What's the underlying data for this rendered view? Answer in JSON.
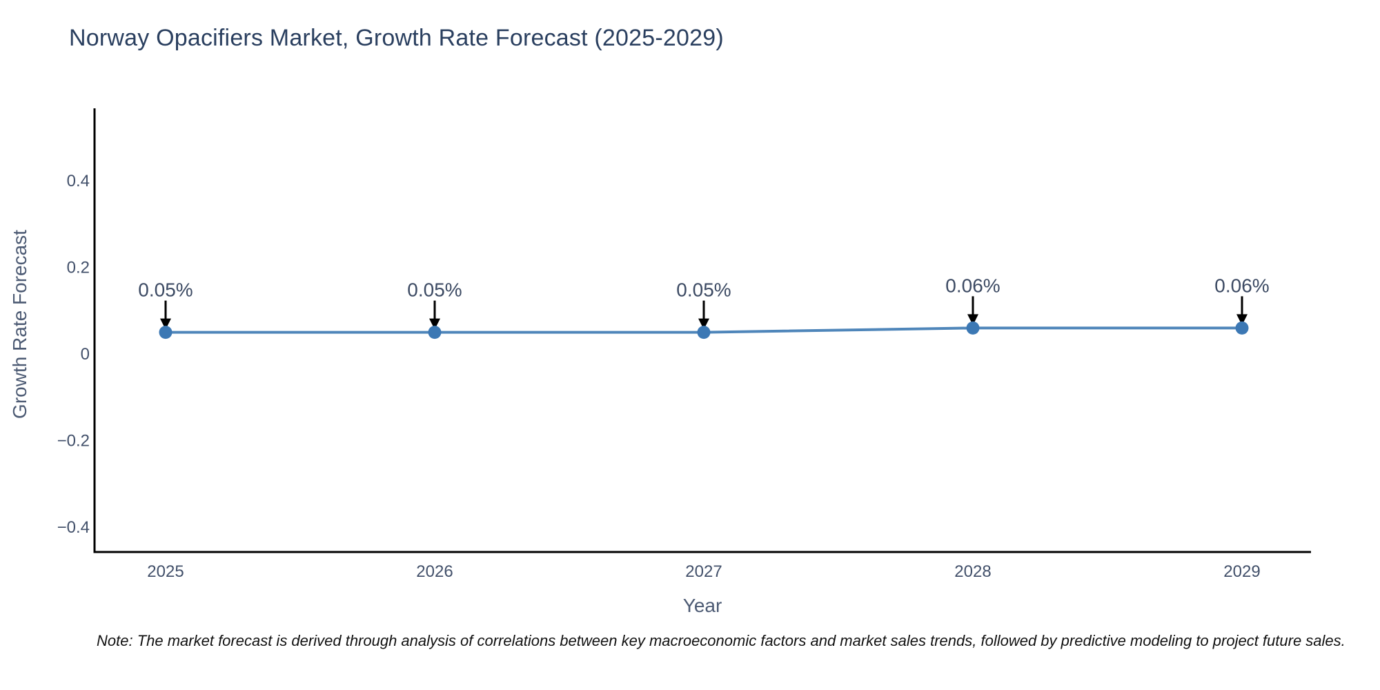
{
  "title": "Norway Opacifiers Market, Growth Rate Forecast (2025-2029)",
  "note": "Note: The market forecast is derived through analysis of correlations between key macroeconomic factors and market sales trends, followed by predictive modeling to project future sales.",
  "chart_data": {
    "type": "line",
    "title": "Norway Opacifiers Market, Growth Rate Forecast (2025-2029)",
    "xlabel": "Year",
    "ylabel": "Growth Rate Forecast",
    "categories": [
      "2025",
      "2026",
      "2027",
      "2028",
      "2029"
    ],
    "values": [
      0.05,
      0.05,
      0.05,
      0.06,
      0.06
    ],
    "point_labels": [
      "0.05%",
      "0.05%",
      "0.05%",
      "0.06%",
      "0.06%"
    ],
    "series_name": "Growth Rate Forecast",
    "ylim": [
      -0.457,
      0.567
    ],
    "yticks": {
      "values": [
        0.4,
        0.2,
        0,
        -0.2,
        -0.4
      ],
      "labels": [
        "0.4",
        "0.2",
        "0",
        "−0.2",
        "−0.4"
      ]
    },
    "grid": false,
    "legend": "none",
    "annotation_style": "value labels with black down arrows above each point",
    "colors": {
      "line": "#4f86ba",
      "marker": "#3c78b4",
      "axis": "#000000",
      "title_text": "#2a3f5f",
      "tick_text": "#42506a",
      "axis_title_text": "#4c5a73",
      "annotation_text": "#3c4a63",
      "arrow": "#000000",
      "background": "#ffffff"
    }
  }
}
